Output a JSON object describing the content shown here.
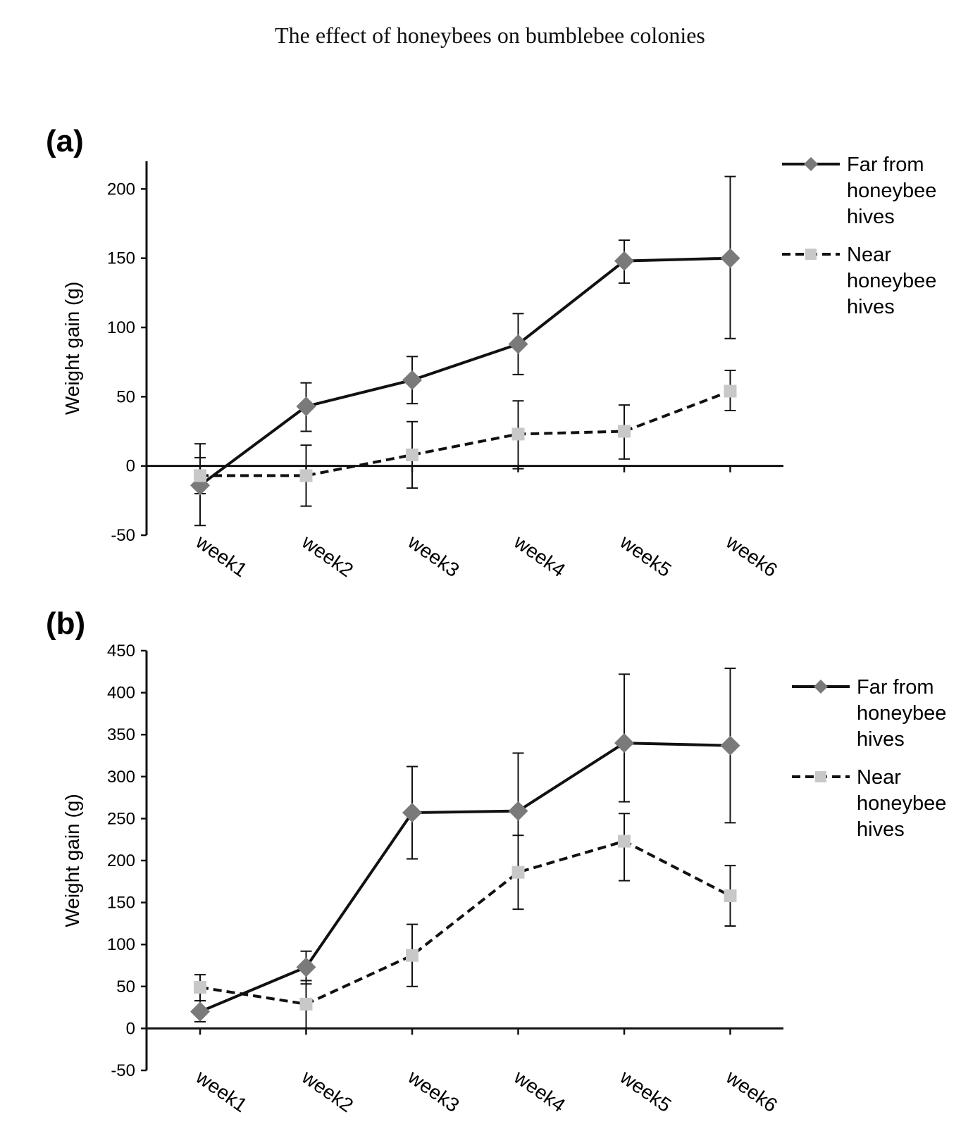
{
  "title": "The effect of honeybees on bumblebee colonies",
  "chart_data": [
    {
      "type": "line",
      "panel": "(a)",
      "ylabel": "Weight gain (g)",
      "ylim": [
        -50,
        220
      ],
      "yticks": [
        -50,
        0,
        50,
        100,
        150,
        200
      ],
      "categories": [
        "week1",
        "week2",
        "week3",
        "week4",
        "week5",
        "week6"
      ],
      "legend": "right",
      "series": [
        {
          "name": "Far from honeybee hives",
          "values": [
            -14,
            43,
            62,
            88,
            148,
            150
          ],
          "err_hi": [
            16,
            60,
            79,
            110,
            163,
            209
          ],
          "err_lo": [
            -43,
            25,
            45,
            66,
            132,
            92
          ],
          "color": "#7a7a7a",
          "marker": "diamond",
          "dash": "solid"
        },
        {
          "name": "Near honeybee hives",
          "values": [
            -7,
            -7,
            8,
            23,
            25,
            54
          ],
          "err_hi": [
            6,
            15,
            32,
            47,
            44,
            69
          ],
          "err_lo": [
            -20,
            -29,
            -16,
            -2,
            5,
            40
          ],
          "color": "#c8c8c8",
          "marker": "square",
          "dash": "dashed"
        }
      ]
    },
    {
      "type": "line",
      "panel": "(b)",
      "ylabel": "Weight gain (g)",
      "ylim": [
        -50,
        450
      ],
      "yticks": [
        -50,
        0,
        50,
        100,
        150,
        200,
        250,
        300,
        350,
        400,
        450
      ],
      "categories": [
        "week1",
        "week2",
        "week3",
        "week4",
        "week5",
        "week6"
      ],
      "legend": "right",
      "series": [
        {
          "name": "Far from honeybee hives",
          "values": [
            20,
            73,
            257,
            259,
            340,
            337
          ],
          "err_hi": [
            33,
            92,
            312,
            328,
            422,
            429
          ],
          "err_lo": [
            8,
            53,
            202,
            190,
            270,
            245
          ],
          "color": "#7a7a7a",
          "marker": "diamond",
          "dash": "solid"
        },
        {
          "name": "Near honeybee hives",
          "values": [
            49,
            29,
            87,
            186,
            223,
            158
          ],
          "err_hi": [
            64,
            57,
            124,
            230,
            256,
            194
          ],
          "err_lo": [
            33,
            0,
            50,
            142,
            176,
            122
          ],
          "color": "#c8c8c8",
          "marker": "square",
          "dash": "dashed"
        }
      ]
    }
  ]
}
